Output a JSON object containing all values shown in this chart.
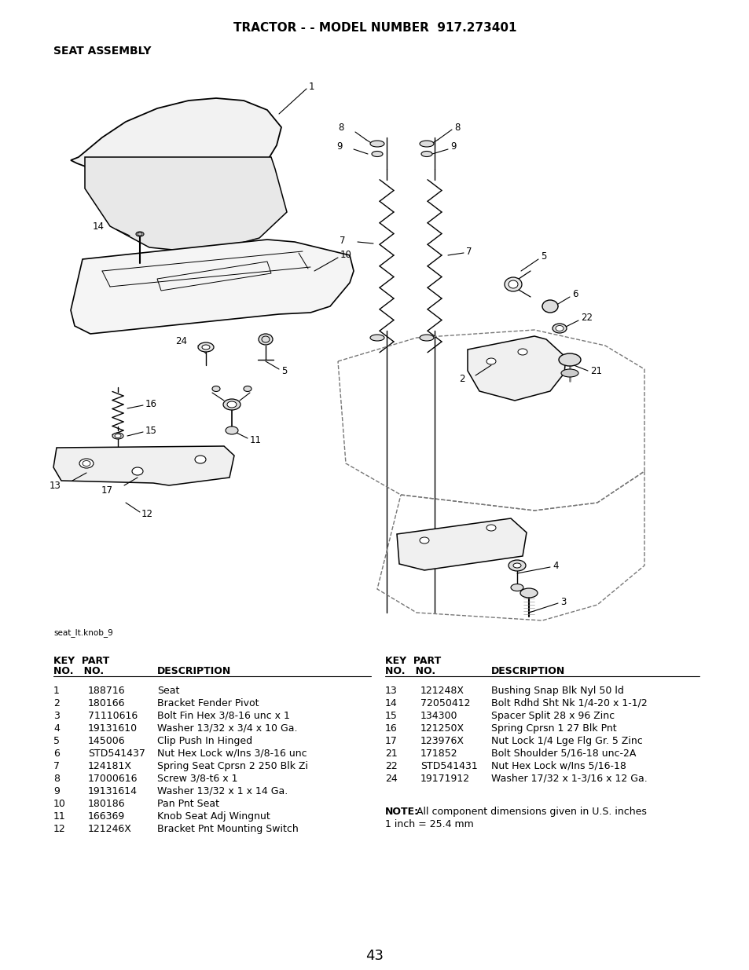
{
  "title": "TRACTOR - - MODEL NUMBER  917.273401",
  "subtitle": "SEAT ASSEMBLY",
  "image_label": "seat_lt.knob_9",
  "page_number": "43",
  "bg_color": "#ffffff",
  "left_parts": [
    [
      "1",
      "188716",
      "Seat"
    ],
    [
      "2",
      "180166",
      "Bracket Fender Pivot"
    ],
    [
      "3",
      "71110616",
      "Bolt Fin Hex 3/8-16 unc x 1"
    ],
    [
      "4",
      "19131610",
      "Washer 13/32 x 3/4 x 10 Ga."
    ],
    [
      "5",
      "145006",
      "Clip Push In Hinged"
    ],
    [
      "6",
      "STD541437",
      "Nut Hex Lock w/Ins 3/8-16 unc"
    ],
    [
      "7",
      "124181X",
      "Spring Seat Cprsn 2 250 Blk Zi"
    ],
    [
      "8",
      "17000616",
      "Screw 3/8-t6 x 1"
    ],
    [
      "9",
      "19131614",
      "Washer 13/32 x 1 x 14 Ga."
    ],
    [
      "10",
      "180186",
      "Pan Pnt Seat"
    ],
    [
      "11",
      "166369",
      "Knob Seat Adj Wingnut"
    ],
    [
      "12",
      "121246X",
      "Bracket Pnt Mounting Switch"
    ]
  ],
  "right_parts": [
    [
      "13",
      "121248X",
      "Bushing Snap Blk Nyl 50 ld"
    ],
    [
      "14",
      "72050412",
      "Bolt Rdhd Sht Nk 1/4-20 x 1-1/2"
    ],
    [
      "15",
      "134300",
      "Spacer Split 28 x 96 Zinc"
    ],
    [
      "16",
      "121250X",
      "Spring Cprsn 1 27 Blk Pnt"
    ],
    [
      "17",
      "123976X",
      "Nut Lock 1/4 Lge Flg Gr. 5 Zinc"
    ],
    [
      "21",
      "171852",
      "Bolt Shoulder 5/16-18 unc-2A"
    ],
    [
      "22",
      "STD541431",
      "Nut Hex Lock w/Ins 5/16-18"
    ],
    [
      "24",
      "19171912",
      "Washer 17/32 x 1-3/16 x 12 Ga."
    ]
  ],
  "note_bold": "NOTE:",
  "note_text": " All component dimensions given in U.S. inches",
  "note_text2": "1 inch = 25.4 mm"
}
